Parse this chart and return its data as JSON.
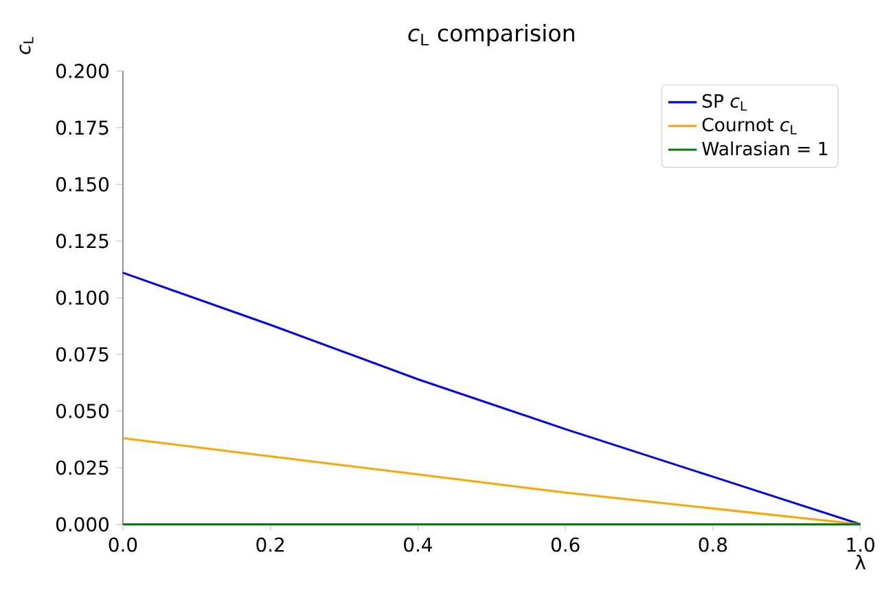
{
  "chart_data": {
    "type": "line",
    "title": "*c*$_{L}$ comparision",
    "xlabel": "λ",
    "ylabel": "*c*$_{L}$",
    "x": [
      0,
      0.2,
      0.4,
      0.6,
      0.8,
      1.0
    ],
    "series": [
      {
        "name": "SP *c*$_{L}$",
        "color": "#0000ff",
        "values": [
          0.111,
          0.088,
          0.064,
          0.042,
          0.021,
          0
        ]
      },
      {
        "name": "Cournot *c*$_{L}$",
        "color": "#ffa500",
        "values": [
          0.038,
          0.03,
          0.022,
          0.014,
          0.007,
          0
        ]
      },
      {
        "name": "Walrasian = 1",
        "color": "#008000",
        "values": [
          0,
          0,
          0,
          0,
          0,
          0
        ]
      }
    ],
    "xlim": [
      0,
      1
    ],
    "ylim": [
      0,
      0.2
    ],
    "xticks": [
      {
        "value": 0,
        "label": "0.0"
      },
      {
        "value": 0.2,
        "label": "0.2"
      },
      {
        "value": 0.4,
        "label": "0.4"
      },
      {
        "value": 0.6,
        "label": "0.6"
      },
      {
        "value": 0.8,
        "label": "0.8"
      },
      {
        "value": 1.0,
        "label": "1.0"
      }
    ],
    "yticks": [
      {
        "value": 0,
        "label": "0.000"
      },
      {
        "value": 0.025,
        "label": "0.025"
      },
      {
        "value": 0.05,
        "label": "0.050"
      },
      {
        "value": 0.075,
        "label": "0.075"
      },
      {
        "value": 0.1,
        "label": "0.100"
      },
      {
        "value": 0.125,
        "label": "0.125"
      },
      {
        "value": 0.15,
        "label": "0.150"
      },
      {
        "value": 0.175,
        "label": "0.175"
      },
      {
        "value": 0.2,
        "label": "0.200"
      }
    ],
    "legend": "top right"
  }
}
